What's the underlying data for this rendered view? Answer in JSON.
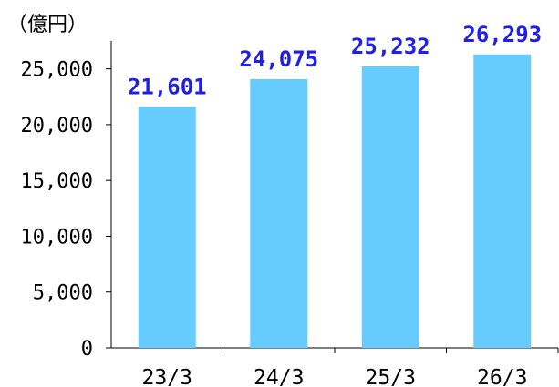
{
  "chart_data": {
    "type": "bar",
    "title": "",
    "unit_label": "（億円）",
    "xlabel": "",
    "ylabel": "",
    "categories": [
      "23/3",
      "24/3",
      "25/3",
      "26/3"
    ],
    "values": [
      21601,
      24075,
      25232,
      26293
    ],
    "value_labels": [
      "21,601",
      "24,075",
      "25,232",
      "26,293"
    ],
    "ylim": [
      0,
      27500
    ],
    "yticks": [
      0,
      5000,
      10000,
      15000,
      20000,
      25000
    ],
    "ytick_labels": [
      "0",
      "5,000",
      "10,000",
      "15,000",
      "20,000",
      "25,000"
    ],
    "grid": false,
    "legend": "none",
    "colors": {
      "bar": "#66CCFF",
      "data_label": "#1F1FE6",
      "axis": "#000000"
    }
  }
}
